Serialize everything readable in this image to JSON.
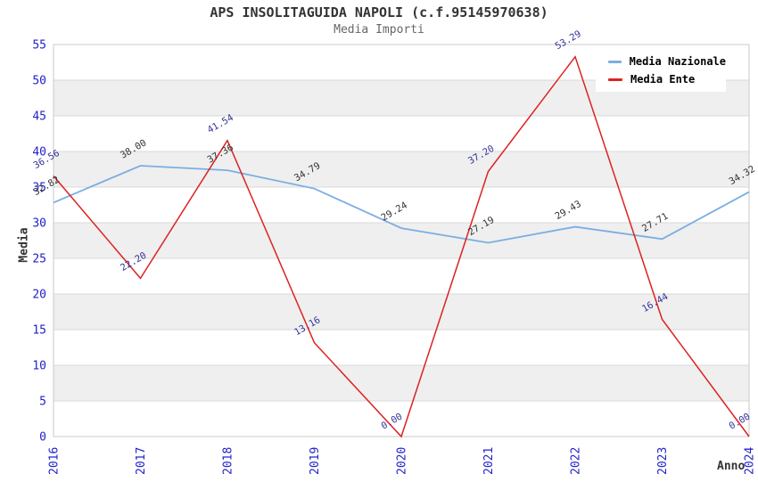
{
  "title": "APS INSOLITAGUIDA NAPOLI (c.f.95145970638)",
  "subtitle": "Media Importi",
  "axes": {
    "ylabel": "Media",
    "xlabel": "Anno"
  },
  "chart_data": {
    "type": "line",
    "title": "APS INSOLITAGUIDA NAPOLI (c.f.95145970638)",
    "subtitle": "Media Importi",
    "xlabel": "Anno",
    "ylabel": "Media",
    "categories": [
      "2016",
      "2017",
      "2018",
      "2019",
      "2020",
      "2021",
      "2022",
      "2023",
      "2024"
    ],
    "series": [
      {
        "name": "Media Nazionale",
        "color": "#7aaee2",
        "label_color": "#333333",
        "values": [
          32.82,
          38.0,
          37.36,
          34.79,
          29.24,
          27.19,
          29.43,
          27.71,
          34.32
        ]
      },
      {
        "name": "Media Ente",
        "color": "#dd2222",
        "label_color": "#333399",
        "values": [
          36.56,
          22.2,
          41.54,
          13.16,
          0.0,
          37.2,
          53.29,
          16.44,
          0.0
        ]
      }
    ],
    "ylim": [
      0,
      55
    ],
    "ytick_step": 5,
    "grid": true,
    "legend_position": "top-right",
    "tick_color": "#2222cc",
    "band_colors": [
      "#ffffff",
      "#efefef"
    ],
    "grid_color": "#d9d9d9",
    "border_color": "#c8c8c8",
    "value_format": "2dp"
  }
}
